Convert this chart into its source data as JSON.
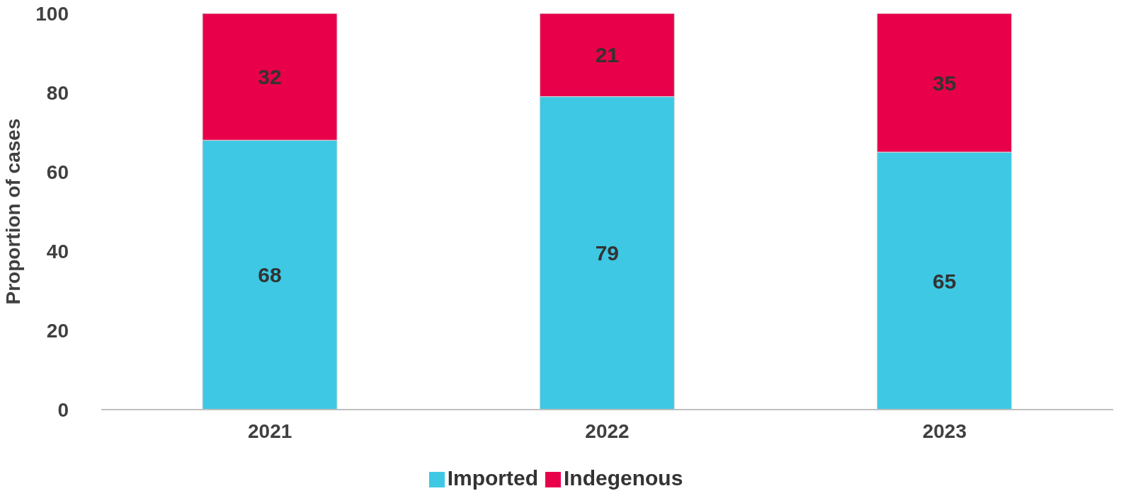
{
  "chart_data": {
    "type": "bar",
    "stacked": true,
    "ylabel": "Proportion of cases",
    "categories": [
      "2021",
      "2022",
      "2023"
    ],
    "series": [
      {
        "name": "Imported",
        "color": "#3ec8e4",
        "values": [
          68,
          79,
          65
        ]
      },
      {
        "name": "Indegenous",
        "color": "#e8004a",
        "values": [
          32,
          21,
          35
        ]
      }
    ],
    "ylim": [
      0,
      100
    ],
    "yticks": [
      0,
      20,
      40,
      60,
      80,
      100
    ],
    "grid": false,
    "legend": "bottom",
    "data_labels": true
  }
}
